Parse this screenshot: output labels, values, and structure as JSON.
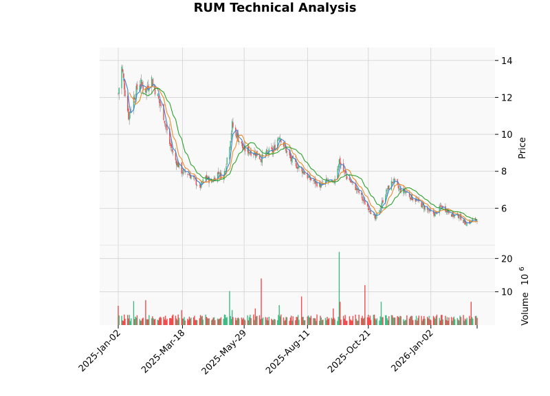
{
  "chart_data": {
    "type": "candlestick",
    "title": "RUM Technical Analysis",
    "price_panel": {
      "ylabel": "Price",
      "ylim": [
        4.0,
        14.7
      ],
      "yticks": [
        6,
        8,
        10,
        12,
        14
      ],
      "ytick_labels": [
        "6",
        "8",
        "10",
        "12",
        "14"
      ]
    },
    "volume_panel": {
      "ylabel": "Volume",
      "scale_label": "10",
      "scale_exponent": "6",
      "ylim": [
        0,
        24
      ],
      "yticks": [
        10,
        20
      ],
      "ytick_labels": [
        "10",
        "20"
      ]
    },
    "x_axis": {
      "start": "2025-01-02",
      "end": "2026-02-25",
      "ticks": [
        "2025-Jan-02",
        "2025-Mar-18",
        "2025-May-29",
        "2025-Aug-11",
        "2025-Oct-21",
        "2026-Jan-02"
      ]
    },
    "colors": {
      "up": "#3dbb82",
      "down": "#f04a4a",
      "ma_short": "#3e7fd1",
      "ma_mid": "#f08a20",
      "ma_long": "#2ca02c",
      "panel_bg": "#f9f9f9",
      "grid": "#d2d2d2"
    },
    "close_anchors": [
      [
        "2025-01-02",
        12.2
      ],
      [
        "2025-01-06",
        13.6
      ],
      [
        "2025-01-10",
        12.3
      ],
      [
        "2025-01-14",
        11.0
      ],
      [
        "2025-01-20",
        12.0
      ],
      [
        "2025-01-27",
        12.8
      ],
      [
        "2025-02-03",
        12.4
      ],
      [
        "2025-02-10",
        13.0
      ],
      [
        "2025-02-17",
        12.0
      ],
      [
        "2025-02-24",
        11.0
      ],
      [
        "2025-03-03",
        9.5
      ],
      [
        "2025-03-10",
        8.6
      ],
      [
        "2025-03-17",
        8.0
      ],
      [
        "2025-03-24",
        7.9
      ],
      [
        "2025-03-31",
        7.6
      ],
      [
        "2025-04-07",
        7.1
      ],
      [
        "2025-04-14",
        7.7
      ],
      [
        "2025-04-21",
        7.4
      ],
      [
        "2025-04-28",
        7.9
      ],
      [
        "2025-05-05",
        7.7
      ],
      [
        "2025-05-12",
        9.5
      ],
      [
        "2025-05-15",
        10.5
      ],
      [
        "2025-05-21",
        9.9
      ],
      [
        "2025-05-28",
        9.2
      ],
      [
        "2025-06-04",
        9.1
      ],
      [
        "2025-06-11",
        9.0
      ],
      [
        "2025-06-18",
        8.7
      ],
      [
        "2025-06-25",
        9.0
      ],
      [
        "2025-07-02",
        9.1
      ],
      [
        "2025-07-09",
        10.0
      ],
      [
        "2025-07-16",
        9.2
      ],
      [
        "2025-07-23",
        8.6
      ],
      [
        "2025-07-30",
        8.3
      ],
      [
        "2025-08-06",
        8.0
      ],
      [
        "2025-08-13",
        7.6
      ],
      [
        "2025-08-20",
        7.4
      ],
      [
        "2025-08-27",
        7.2
      ],
      [
        "2025-09-03",
        7.5
      ],
      [
        "2025-09-10",
        7.3
      ],
      [
        "2025-09-17",
        8.6
      ],
      [
        "2025-09-24",
        7.8
      ],
      [
        "2025-10-01",
        7.4
      ],
      [
        "2025-10-08",
        7.0
      ],
      [
        "2025-10-15",
        6.4
      ],
      [
        "2025-10-22",
        6.0
      ],
      [
        "2025-10-29",
        5.4
      ],
      [
        "2025-11-05",
        6.2
      ],
      [
        "2025-11-12",
        7.0
      ],
      [
        "2025-11-19",
        7.5
      ],
      [
        "2025-11-26",
        7.0
      ],
      [
        "2025-12-03",
        6.9
      ],
      [
        "2025-12-10",
        6.6
      ],
      [
        "2025-12-17",
        6.4
      ],
      [
        "2025-12-24",
        6.1
      ],
      [
        "2025-12-31",
        5.8
      ],
      [
        "2026-01-07",
        5.7
      ],
      [
        "2026-01-14",
        6.1
      ],
      [
        "2026-01-21",
        5.9
      ],
      [
        "2026-01-28",
        5.6
      ],
      [
        "2026-02-04",
        5.6
      ],
      [
        "2026-02-11",
        5.2
      ],
      [
        "2026-02-18",
        5.3
      ],
      [
        "2026-02-25",
        5.4
      ]
    ],
    "volume_base_millions": 2.2,
    "volume_spikes": [
      [
        "2025-01-02",
        5.8
      ],
      [
        "2025-01-20",
        7.2
      ],
      [
        "2025-02-03",
        7.5
      ],
      [
        "2025-03-17",
        4.5
      ],
      [
        "2025-05-12",
        10.2
      ],
      [
        "2025-05-15",
        4.5
      ],
      [
        "2025-06-11",
        5.0
      ],
      [
        "2025-06-18",
        14.0
      ],
      [
        "2025-07-09",
        6.0
      ],
      [
        "2025-08-04",
        8.6
      ],
      [
        "2025-09-10",
        5.0
      ],
      [
        "2025-09-17",
        22.0
      ],
      [
        "2025-09-18",
        7.0
      ],
      [
        "2025-10-17",
        12.0
      ],
      [
        "2025-11-05",
        7.0
      ],
      [
        "2026-02-18",
        7.0
      ]
    ]
  }
}
